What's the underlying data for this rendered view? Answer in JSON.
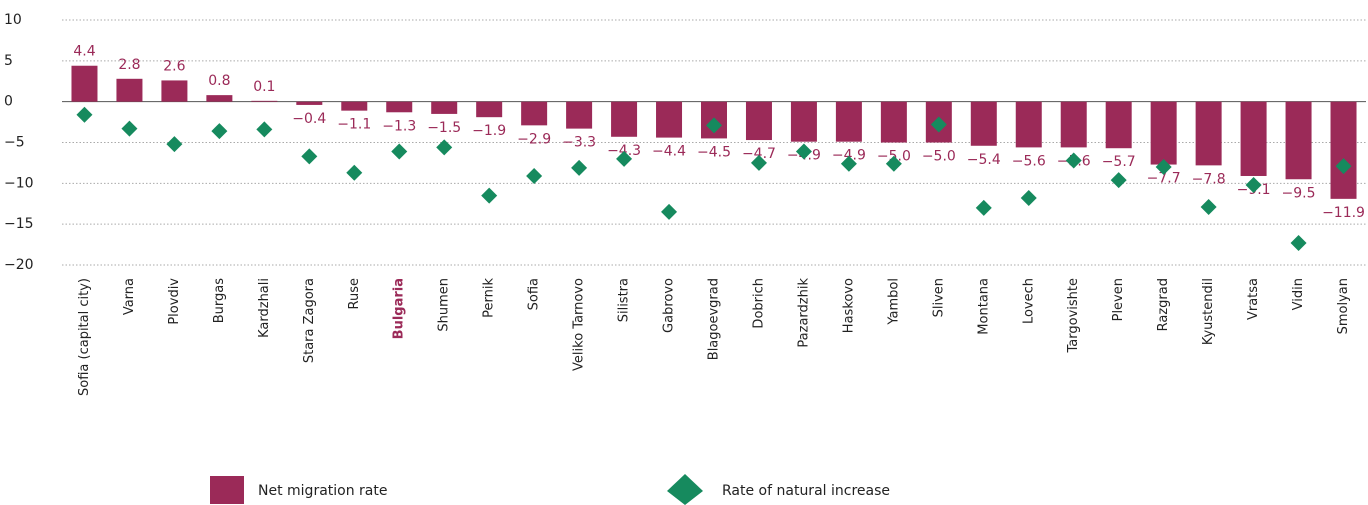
{
  "chart_data": {
    "type": "bar",
    "categories": [
      "Sofia (capital city)",
      "Varna",
      "Plovdiv",
      "Burgas",
      "Kardzhali",
      "Stara Zagora",
      "Ruse",
      "Bulgaria",
      "Shumen",
      "Pernik",
      "Sofia",
      "Veliko Tarnovo",
      "Silistra",
      "Gabrovo",
      "Blagoevgrad",
      "Dobrich",
      "Pazardzhik",
      "Haskovo",
      "Yambol",
      "Sliven",
      "Montana",
      "Lovech",
      "Targovishte",
      "Pleven",
      "Razgrad",
      "Kyustendil",
      "Vratsa",
      "Vidin",
      "Smolyan"
    ],
    "highlight_index": 7,
    "series": [
      {
        "name": "Net migration rate",
        "color": "#9b2a58",
        "values": [
          4.4,
          2.8,
          2.6,
          0.8,
          0.1,
          -0.4,
          -1.1,
          -1.3,
          -1.5,
          -1.9,
          -2.9,
          -3.3,
          -4.3,
          -4.4,
          -4.5,
          -4.7,
          -4.9,
          -4.9,
          -5.0,
          -5.0,
          -5.4,
          -5.6,
          -5.6,
          -5.7,
          -7.7,
          -7.8,
          -9.1,
          -9.5,
          -11.9
        ],
        "value_labels": [
          "4.4",
          "2.8",
          "2.6",
          "0.8",
          "0.1",
          "−0.4",
          "−1.1",
          "−1.3",
          "−1.5",
          "−1.9",
          "−2.9",
          "−3.3",
          "−4.3",
          "−4.4",
          "−4.5",
          "−4.7",
          "−4.9",
          "−4.9",
          "−5.0",
          "−5.0",
          "−5.4",
          "−5.6",
          "−5.6",
          "−5.7",
          "−7.7",
          "−7.8",
          "−9.1",
          "−9.5",
          "−11.9"
        ]
      },
      {
        "name": "Rate of natural increase",
        "color": "#168a5e",
        "marker": "diamond",
        "values": [
          -1.6,
          -3.3,
          -5.2,
          -3.6,
          -3.4,
          -6.7,
          -8.7,
          -6.1,
          -5.6,
          -11.5,
          -9.1,
          -8.1,
          -7.0,
          -13.5,
          -2.9,
          -7.5,
          -6.1,
          -7.6,
          -7.6,
          -2.8,
          -13.0,
          -11.8,
          -7.2,
          -9.6,
          -8.0,
          -12.9,
          -10.2,
          -17.3,
          -7.9
        ]
      }
    ],
    "ylim": [
      -20,
      10
    ],
    "yticks": [
      10,
      5,
      0,
      {
        "value": -5,
        "label": "−5"
      },
      {
        "value": -10,
        "label": "−10"
      },
      {
        "value": -15,
        "label": "−15"
      },
      {
        "value": -20,
        "label": "−20"
      }
    ],
    "grid": true
  }
}
